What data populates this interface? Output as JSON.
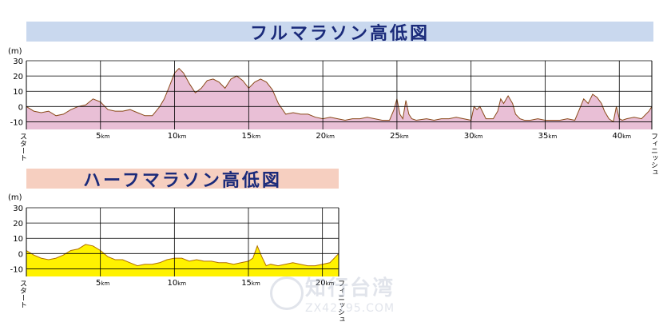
{
  "charts": [
    {
      "id": "full",
      "title": "フルマラソン高低図",
      "title_color": "#1a2a7a",
      "bar_color": "#c9d8ee",
      "fill_color": "#e9bfd6",
      "line_color": "#8a4a1a",
      "unit_label": "(m)",
      "start_label": "スタート",
      "finish_label": "フィニッシュ",
      "x_max": 42.195,
      "km_suffix": "km",
      "x_ticks": [
        "5",
        "10",
        "15",
        "20",
        "25",
        "30",
        "35",
        "40"
      ]
    },
    {
      "id": "half",
      "title": "ハーフマラソン高低図",
      "title_color": "#1a2a7a",
      "bar_color": "#f6cfc0",
      "fill_color": "#fff200",
      "line_color": "#b07000",
      "unit_label": "(m)",
      "start_label": "スタート",
      "finish_label": "フィニッシュ",
      "x_max": 21.0975,
      "km_suffix": "km",
      "x_ticks": [
        "5",
        "10",
        "15",
        "20"
      ]
    }
  ],
  "y_ticks": [
    "30",
    "20",
    "10",
    "0",
    "-10"
  ],
  "chart_data": [
    {
      "type": "area",
      "title": "フルマラソン高低図",
      "xlabel": "",
      "ylabel": "(m)",
      "ylim": [
        -15,
        30
      ],
      "xlim": [
        0,
        42.195
      ],
      "grid": true,
      "x": [
        0,
        0.5,
        1,
        1.5,
        2,
        2.5,
        3,
        3.5,
        4,
        4.5,
        5,
        5.5,
        6,
        6.5,
        7,
        7.5,
        8,
        8.5,
        9,
        9.3,
        9.6,
        10,
        10.3,
        10.6,
        11,
        11.4,
        11.8,
        12.2,
        12.6,
        13,
        13.4,
        13.8,
        14.2,
        14.6,
        15,
        15.4,
        15.8,
        16.2,
        16.6,
        17,
        17.5,
        18,
        18.5,
        19,
        19.5,
        20,
        20.5,
        21,
        21.5,
        22,
        22.5,
        23,
        23.5,
        24,
        24.5,
        24.8,
        25,
        25.2,
        25.4,
        25.6,
        25.8,
        26,
        26.3,
        27,
        27.5,
        28,
        28.5,
        29,
        29.5,
        30,
        30.2,
        30.4,
        30.6,
        31,
        31.5,
        31.8,
        32,
        32.2,
        32.5,
        32.8,
        33,
        33.3,
        33.6,
        34,
        34.5,
        35,
        35.5,
        36,
        36.5,
        37,
        37.3,
        37.6,
        37.9,
        38.2,
        38.5,
        38.8,
        39,
        39.3,
        39.6,
        39.8,
        40,
        40.2,
        40.5,
        41,
        41.5,
        42,
        42.195
      ],
      "series": [
        {
          "values": [
            0,
            -3,
            -4,
            -3,
            -6,
            -5,
            -2,
            0,
            1,
            5,
            3,
            -2,
            -3,
            -3,
            -2,
            -4,
            -6,
            -6,
            0,
            5,
            12,
            22,
            25,
            22,
            15,
            9,
            12,
            17,
            18,
            16,
            12,
            18,
            20,
            17,
            12,
            16,
            18,
            16,
            11,
            2,
            -5,
            -4,
            -5,
            -5,
            -7,
            -8,
            -7,
            -8,
            -9,
            -8,
            -8,
            -7,
            -8,
            -9,
            -9,
            -2,
            5,
            -5,
            -8,
            4,
            -5,
            -8,
            -9,
            -8,
            -9,
            -8,
            -8,
            -7,
            -8,
            -9,
            0,
            -2,
            0,
            -8,
            -8,
            -3,
            5,
            2,
            7,
            2,
            -5,
            -8,
            -9,
            -9,
            -8,
            -9,
            -9,
            -9,
            -8,
            -9,
            -2,
            5,
            2,
            8,
            6,
            2,
            -3,
            -8,
            -10,
            0,
            -8,
            -9,
            -8,
            -7,
            -8,
            -3,
            0
          ]
        }
      ]
    },
    {
      "type": "area",
      "title": "ハーフマラソン高低図",
      "xlabel": "",
      "ylabel": "(m)",
      "ylim": [
        -15,
        30
      ],
      "xlim": [
        0,
        21.0975
      ],
      "grid": true,
      "x": [
        0,
        0.5,
        1,
        1.5,
        2,
        2.5,
        3,
        3.5,
        4,
        4.5,
        5,
        5.5,
        6,
        6.5,
        7,
        7.5,
        8,
        8.5,
        9,
        9.5,
        10,
        10.5,
        11,
        11.5,
        12,
        12.5,
        13,
        13.5,
        14,
        14.5,
        15,
        15.3,
        15.6,
        15.9,
        16.2,
        16.5,
        17,
        17.5,
        18,
        18.5,
        19,
        19.5,
        20,
        20.5,
        21.0975
      ],
      "series": [
        {
          "values": [
            2,
            -1,
            -3,
            -4,
            -3,
            -1,
            2,
            3,
            6,
            5,
            2,
            -2,
            -4,
            -4,
            -6,
            -8,
            -7,
            -7,
            -6,
            -4,
            -3,
            -3,
            -5,
            -4,
            -5,
            -5,
            -6,
            -6,
            -7,
            -6,
            -5,
            -3,
            5,
            -2,
            -8,
            -7,
            -8,
            -7,
            -6,
            -7,
            -8,
            -8,
            -7,
            -6,
            0
          ]
        }
      ]
    }
  ]
}
